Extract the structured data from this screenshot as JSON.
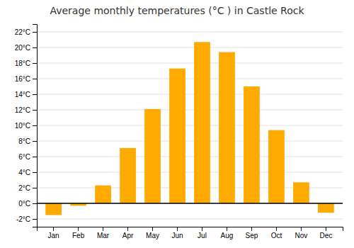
{
  "chart_data": {
    "type": "bar",
    "title": "Average monthly temperatures (°C ) in Castle Rock",
    "categories": [
      "Jan",
      "Feb",
      "Mar",
      "Apr",
      "May",
      "Jun",
      "Jul",
      "Aug",
      "Sep",
      "Oct",
      "Nov",
      "Dec"
    ],
    "values": [
      -1.5,
      -0.3,
      2.3,
      7.1,
      12.1,
      17.3,
      20.7,
      19.4,
      15.0,
      9.4,
      2.7,
      -1.2
    ],
    "color": "#FFAA00",
    "ylim": [
      -3,
      23
    ],
    "yticks": [
      {
        "value": -2,
        "label": "-2°C"
      },
      {
        "value": 0,
        "label": "0°C"
      },
      {
        "value": 2,
        "label": "2°C"
      },
      {
        "value": 4,
        "label": "4°C"
      },
      {
        "value": 6,
        "label": "6°C"
      },
      {
        "value": 8,
        "label": "8°C"
      },
      {
        "value": 10,
        "label": "10°C"
      },
      {
        "value": 12,
        "label": "12°C"
      },
      {
        "value": 14,
        "label": "14°C"
      },
      {
        "value": 16,
        "label": "16°C"
      },
      {
        "value": 18,
        "label": "18°C"
      },
      {
        "value": 20,
        "label": "20°C"
      },
      {
        "value": 22,
        "label": "22°C"
      }
    ],
    "grid": true
  }
}
